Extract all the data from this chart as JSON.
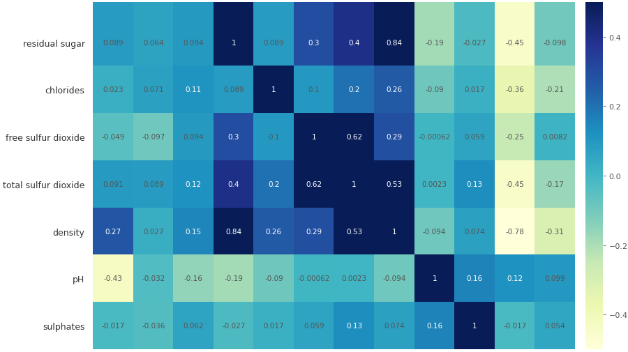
{
  "row_labels": [
    "residual sugar",
    "chlorides",
    "free sulfur dioxide",
    "total sulfur dioxide",
    "density",
    "pH",
    "sulphates"
  ],
  "matrix": [
    [
      0.089,
      0.064,
      0.094,
      1,
      0.089,
      0.3,
      0.4,
      0.84,
      -0.19,
      -0.027,
      -0.45,
      -0.098
    ],
    [
      0.023,
      0.071,
      0.11,
      0.089,
      1,
      0.1,
      0.2,
      0.26,
      -0.09,
      0.017,
      -0.36,
      -0.21
    ],
    [
      -0.049,
      -0.097,
      0.094,
      0.3,
      0.1,
      1,
      0.62,
      0.29,
      -0.00062,
      0.059,
      -0.25,
      0.0082
    ],
    [
      0.091,
      0.089,
      0.12,
      0.4,
      0.2,
      0.62,
      1,
      0.53,
      0.0023,
      0.13,
      -0.45,
      -0.17
    ],
    [
      0.27,
      0.027,
      0.15,
      0.84,
      0.26,
      0.29,
      0.53,
      1,
      -0.094,
      0.074,
      -0.78,
      -0.31
    ],
    [
      -0.43,
      -0.032,
      -0.16,
      -0.19,
      -0.09,
      -0.00062,
      0.0023,
      -0.094,
      1,
      0.16,
      0.12,
      0.099
    ],
    [
      -0.017,
      -0.036,
      0.062,
      -0.027,
      0.017,
      0.059,
      0.13,
      0.074,
      0.16,
      1,
      -0.017,
      0.054
    ]
  ],
  "text_matrix": [
    [
      "0.089",
      "0.064",
      "0.094",
      "1",
      "0.089",
      "0.3",
      "0.4",
      "0.84",
      "-0.19",
      "-0.027",
      "-0.45",
      "-0.098"
    ],
    [
      "0.023",
      "0.071",
      "0.11",
      "0.089",
      "1",
      "0.1",
      "0.2",
      "0.26",
      "-0.09",
      "0.017",
      "-0.36",
      "-0.21"
    ],
    [
      "-0.049",
      "-0.097",
      "0.094",
      "0.3",
      "0.1",
      "1",
      "0.62",
      "0.29",
      "-0.00062",
      "0.059",
      "-0.25",
      "0.0082"
    ],
    [
      "0.091",
      "0.089",
      "0.12",
      "0.4",
      "0.2",
      "0.62",
      "1",
      "0.53",
      "0.0023",
      "0.13",
      "-0.45",
      "-0.17"
    ],
    [
      "0.27",
      "0.027",
      "0.15",
      "0.84",
      "0.26",
      "0.29",
      "0.53",
      "1",
      "-0.094",
      "0.074",
      "-0.78",
      "-0.31"
    ],
    [
      "-0.43",
      "-0.032",
      "-0.16",
      "-0.19",
      "-0.09",
      "-0.00062",
      "0.0023",
      "-0.094",
      "1",
      "0.16",
      "0.12",
      "0.099"
    ],
    [
      "-0.017",
      "-0.036",
      "0.062",
      "-0.027",
      "0.017",
      "0.059",
      "0.13",
      "0.074",
      "0.16",
      "1",
      "-0.017",
      "0.054"
    ]
  ],
  "vmin": -0.5,
  "vmax": 0.5,
  "cbar_ticks": [
    0.4,
    0.2,
    0.0,
    -0.2,
    -0.4
  ],
  "colormap": "YlGnBu",
  "background_color": "#ffffff",
  "text_color_light": "#ffffff",
  "text_color_dark": "#555555",
  "figsize": [
    9.0,
    5.06
  ],
  "dpi": 100,
  "extra_top_row": [
    0.089,
    0.064,
    0.094,
    1,
    0.089,
    0.3,
    0.4,
    0.84,
    -0.19,
    -0.027,
    -0.45,
    -0.098
  ]
}
